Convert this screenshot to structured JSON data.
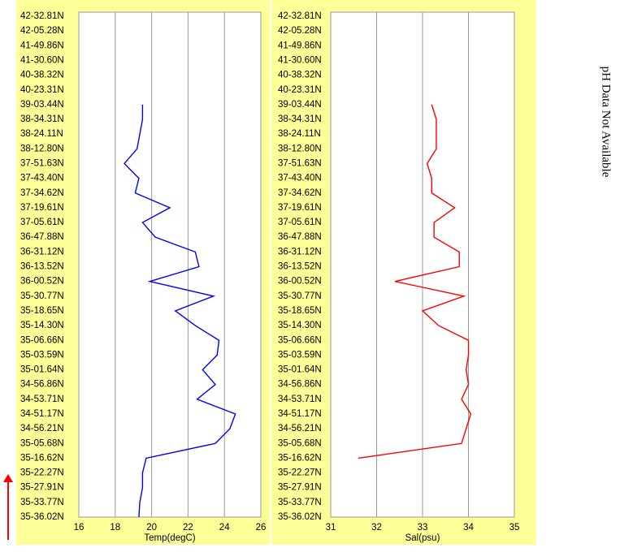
{
  "chart_data": [
    {
      "type": "line",
      "orientation": "horizontal",
      "x_label": "Temp(degC)",
      "categories": [
        "42-32.81N",
        "42-05.28N",
        "41-49.86N",
        "41-30.60N",
        "40-38.32N",
        "40-23.31N",
        "39-03.44N",
        "38-34.31N",
        "38-24.11N",
        "38-12.80N",
        "37-51.63N",
        "37-43.40N",
        "37-34.62N",
        "37-19.61N",
        "37-05.61N",
        "36-47.88N",
        "36-31.12N",
        "36-13.52N",
        "36-00.52N",
        "35-30.77N",
        "35-18.65N",
        "35-14.30N",
        "35-06.66N",
        "35-03.59N",
        "35-01.64N",
        "34-56.86N",
        "34-53.71N",
        "34-51.17N",
        "34-56.21N",
        "35-05.68N",
        "35-16.62N",
        "35-22.27N",
        "35-27.91N",
        "35-33.77N",
        "35-36.02N"
      ],
      "series": [
        {
          "color": "#0000ff",
          "values": [
            null,
            null,
            null,
            null,
            null,
            null,
            19.5,
            19.5,
            19.35,
            19.2,
            18.5,
            19.3,
            19.1,
            21.0,
            19.5,
            20.2,
            22.4,
            22.6,
            19.9,
            23.4,
            21.3,
            22.4,
            23.7,
            23.6,
            22.8,
            23.5,
            22.5,
            24.6,
            24.3,
            23.5,
            19.7,
            19.5,
            19.5,
            19.35,
            19.3
          ]
        }
      ],
      "xlim": [
        16,
        26
      ],
      "xticks": [
        16,
        18,
        20,
        22,
        24,
        26
      ],
      "grid": true
    },
    {
      "type": "line",
      "orientation": "horizontal",
      "x_label": "Sal(psu)",
      "categories": [
        "42-32.81N",
        "42-05.28N",
        "41-49.86N",
        "41-30.60N",
        "40-38.32N",
        "40-23.31N",
        "39-03.44N",
        "38-34.31N",
        "38-24.11N",
        "38-12.80N",
        "37-51.63N",
        "37-43.40N",
        "37-34.62N",
        "37-19.61N",
        "37-05.61N",
        "36-47.88N",
        "36-31.12N",
        "36-13.52N",
        "36-00.52N",
        "35-30.77N",
        "35-18.65N",
        "35-14.30N",
        "35-06.66N",
        "35-03.59N",
        "35-01.64N",
        "34-56.86N",
        "34-53.71N",
        "34-51.17N",
        "34-56.21N",
        "35-05.68N",
        "35-16.62N",
        "35-22.27N",
        "35-27.91N",
        "35-33.77N",
        "35-36.02N"
      ],
      "series": [
        {
          "color": "#ff0000",
          "values": [
            null,
            null,
            null,
            null,
            null,
            null,
            33.2,
            33.3,
            33.3,
            33.3,
            33.1,
            33.2,
            33.2,
            33.7,
            33.25,
            33.25,
            33.8,
            33.8,
            32.4,
            33.9,
            33.0,
            33.35,
            34.0,
            34.0,
            33.95,
            34.0,
            33.85,
            34.05,
            33.95,
            33.85,
            31.6,
            null,
            null,
            null,
            null
          ]
        }
      ],
      "xlim": [
        31,
        35
      ],
      "xticks": [
        31,
        32,
        33,
        34,
        35
      ],
      "grid": true
    }
  ],
  "side_note": "pH Data Not Available"
}
